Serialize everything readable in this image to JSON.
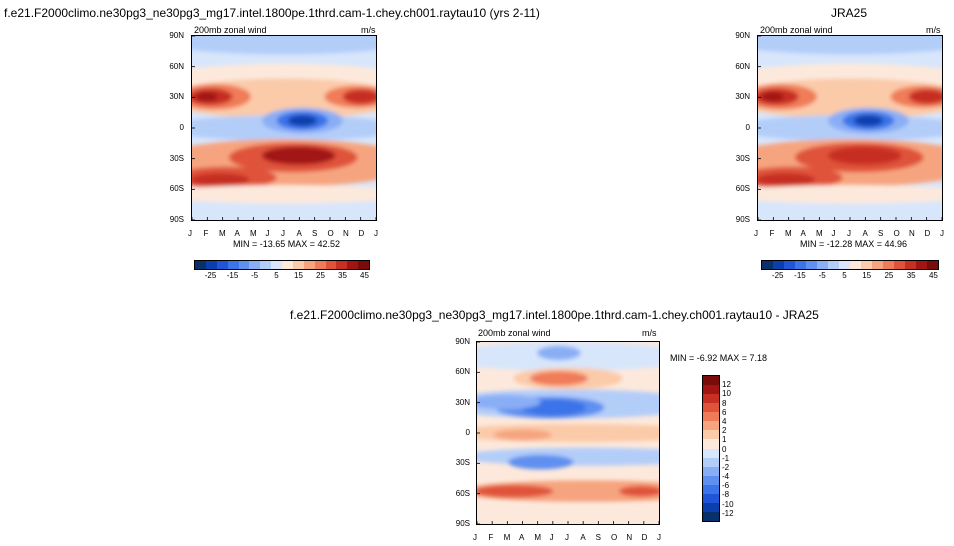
{
  "chart_data": [
    {
      "type": "heatmap",
      "title": "f.e21.F2000climo.ne30pg3_ne30pg3_mg17.intel.1800pe.1thrd.cam-1.chey.ch001.raytau10 (yrs 2-11)",
      "subtitle": "200mb zonal wind",
      "units": "m/s",
      "x_ticks": [
        "J",
        "F",
        "M",
        "A",
        "M",
        "J",
        "J",
        "A",
        "S",
        "O",
        "N",
        "D",
        "J"
      ],
      "y_ticks": [
        "90N",
        "60N",
        "30N",
        "0",
        "30S",
        "60S",
        "90S"
      ],
      "ylim": [
        -90,
        90
      ],
      "stats": "MIN = -13.65 MAX =  42.52",
      "min": -13.65,
      "max": 42.52,
      "colorbar_labels": [
        "-25",
        "-15",
        "-5",
        "5",
        "15",
        "25",
        "35",
        "45"
      ],
      "features": [
        {
          "lat": 30,
          "month_center": 0.5,
          "value": 40
        },
        {
          "lat": 30,
          "month_center": 12.5,
          "value": 36
        },
        {
          "lat": -30,
          "month_center": 7.0,
          "value": 42
        },
        {
          "lat": -48,
          "month_center": 1.0,
          "value": 35
        },
        {
          "lat": 5,
          "month_center": 7.0,
          "value": -13
        }
      ]
    },
    {
      "type": "heatmap",
      "title": "JRA25",
      "subtitle": "200mb zonal wind",
      "units": "m/s",
      "x_ticks": [
        "J",
        "F",
        "M",
        "A",
        "M",
        "J",
        "J",
        "A",
        "S",
        "O",
        "N",
        "D",
        "J"
      ],
      "y_ticks": [
        "90N",
        "60N",
        "30N",
        "0",
        "30S",
        "60S",
        "90S"
      ],
      "ylim": [
        -90,
        90
      ],
      "stats": "MIN = -12.28 MAX =  44.96",
      "min": -12.28,
      "max": 44.96,
      "colorbar_labels": [
        "-25",
        "-15",
        "-5",
        "5",
        "15",
        "25",
        "35",
        "45"
      ],
      "features": [
        {
          "lat": 30,
          "month_center": 0.5,
          "value": 42
        },
        {
          "lat": 30,
          "month_center": 12.5,
          "value": 38
        },
        {
          "lat": -30,
          "month_center": 7.0,
          "value": 44
        },
        {
          "lat": -48,
          "month_center": 1.0,
          "value": 36
        },
        {
          "lat": 5,
          "month_center": 7.0,
          "value": -12
        }
      ]
    },
    {
      "type": "heatmap",
      "title": "f.e21.F2000climo.ne30pg3_ne30pg3_mg17.intel.1800pe.1thrd.cam-1.chey.ch001.raytau10 - JRA25",
      "subtitle": "200mb zonal wind",
      "units": "m/s",
      "x_ticks": [
        "J",
        "F",
        "M",
        "A",
        "M",
        "J",
        "J",
        "A",
        "S",
        "O",
        "N",
        "D",
        "J"
      ],
      "y_ticks": [
        "90N",
        "60N",
        "30N",
        "0",
        "30S",
        "60S",
        "90S"
      ],
      "ylim": [
        -90,
        90
      ],
      "stats": "MIN =  -6.92 MAX =   7.18",
      "min": -6.92,
      "max": 7.18,
      "colorbar_labels": [
        "12",
        "10",
        "8",
        "6",
        "4",
        "2",
        "1",
        "0",
        "-1",
        "-2",
        "-4",
        "-6",
        "-8",
        "-10",
        "-12"
      ]
    }
  ],
  "palette": {
    "seq_colors": [
      "#08306b",
      "#0b3fae",
      "#1f55d6",
      "#3b73e8",
      "#5f8ff0",
      "#8aaef5",
      "#b3cdf9",
      "#d8e6fb",
      "#fde9dc",
      "#fbcaa9",
      "#f6a47f",
      "#f07b58",
      "#e0533a",
      "#c72f22",
      "#a31512",
      "#7a0b0b"
    ],
    "diff_colors": [
      "#7a0b0b",
      "#a31512",
      "#c72f22",
      "#e0533a",
      "#f07b58",
      "#f6a47f",
      "#fbcaa9",
      "#fde9dc",
      "#d8e6fb",
      "#b3cdf9",
      "#8aaef5",
      "#5f8ff0",
      "#3b73e8",
      "#1f55d6",
      "#0b3fae",
      "#08306b"
    ]
  }
}
